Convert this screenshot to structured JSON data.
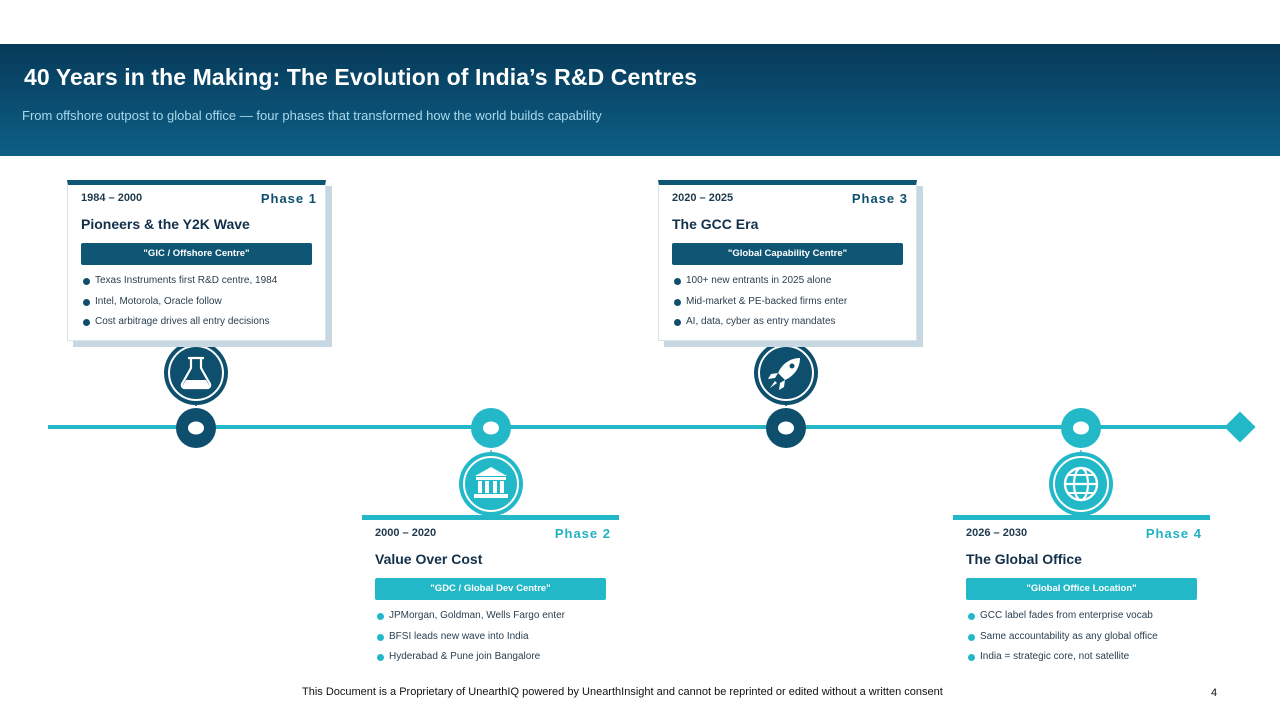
{
  "header": {
    "title": "40 Years in the Making: The Evolution of India’s R&D Centres",
    "subtitle": "From offshore outpost to global office — four phases that transformed how the world builds capability"
  },
  "colors": {
    "dark": "#0f5675",
    "light": "#23b8c8",
    "header": "#073a59"
  },
  "phases": [
    {
      "years": "1984 – 2000",
      "phase": "Phase 1",
      "title": "Pioneers & the Y2K Wave",
      "tag": "\"GIC / Offshore Centre\"",
      "icon": "flask-icon",
      "bullets": [
        "Texas Instruments first R&D centre, 1984",
        "Intel, Motorola, Oracle follow",
        "Cost arbitrage drives all entry decisions"
      ]
    },
    {
      "years": "2000 – 2020",
      "phase": "Phase 2",
      "title": "Value Over Cost",
      "tag": "\"GDC / Global Dev Centre\"",
      "icon": "bank-icon",
      "bullets": [
        "JPMorgan, Goldman, Wells Fargo enter",
        "BFSI leads new wave into India",
        "Hyderabad & Pune join Bangalore"
      ]
    },
    {
      "years": "2020 – 2025",
      "phase": "Phase 3",
      "title": "The GCC Era",
      "tag": "\"Global Capability Centre\"",
      "icon": "rocket-icon",
      "bullets": [
        "100+ new entrants in 2025 alone",
        "Mid-market & PE-backed firms enter",
        "AI, data, cyber as entry mandates"
      ]
    },
    {
      "years": "2026 – 2030",
      "phase": "Phase 4",
      "title": "The Global Office",
      "tag": "\"Global Office Location\"",
      "icon": "globe-icon",
      "bullets": [
        "GCC label fades from enterprise vocab",
        "Same accountability as any global office",
        "India = strategic core, not satellite"
      ]
    }
  ],
  "footer": {
    "text": "This Document is a Proprietary of UnearthIQ powered by UnearthInsight and cannot be reprinted or edited without a written consent",
    "page": "4"
  }
}
